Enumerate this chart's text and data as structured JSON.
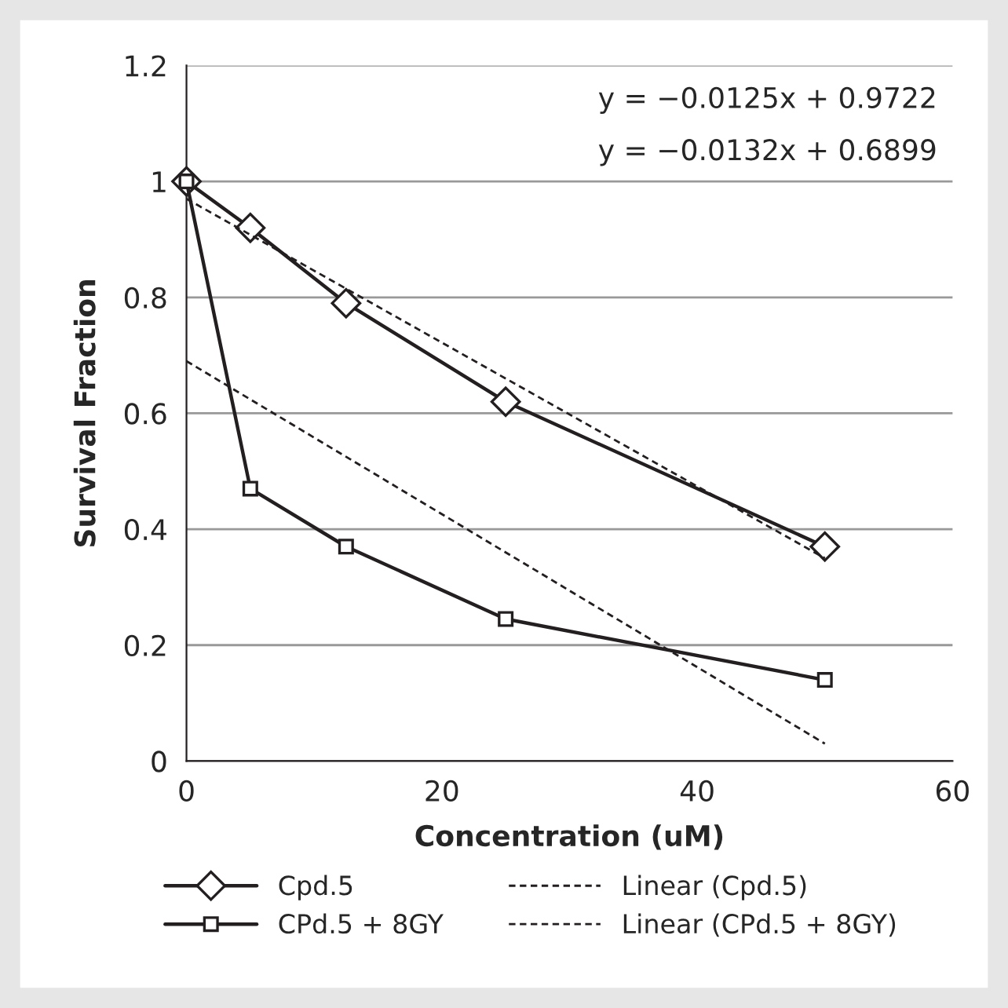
{
  "chart_data": {
    "type": "line",
    "xlabel": "Concentration (uM)",
    "ylabel": "Survival Fraction",
    "xlim": [
      0,
      60
    ],
    "xticks": [
      0,
      20,
      40,
      60
    ],
    "ylim": [
      0,
      1.2
    ],
    "yticks": [
      0,
      0.2,
      0.4,
      0.6,
      0.8,
      1,
      1.2
    ],
    "grid": "y",
    "legend": "bottom",
    "annotations": [
      "y = −0.0125x + 0.9722",
      "y = −0.0132x + 0.6899"
    ],
    "series": [
      {
        "name": "Cpd.5",
        "color": "#231f20",
        "x": [
          0,
          5,
          12.5,
          25,
          50
        ],
        "values": [
          1,
          0.92,
          0.79,
          0.62,
          0.37
        ],
        "marker": "diamond",
        "line_style": "solid"
      },
      {
        "name": "CPd.5 + 8GY",
        "color": "#231f20",
        "x": [
          0,
          5,
          12.5,
          25,
          50
        ],
        "values": [
          1,
          0.47,
          0.37,
          0.245,
          0.14
        ],
        "marker": "square",
        "line_style": "solid"
      },
      {
        "name": "Linear (Cpd.5)",
        "color": "#231f20",
        "x": [
          0,
          50
        ],
        "values": [
          0.97,
          0.35
        ],
        "marker": "none",
        "line_style": "dashed"
      },
      {
        "name": "Linear (CPd.5 + 8GY)",
        "color": "#231f20",
        "x": [
          0,
          50
        ],
        "values": [
          0.69,
          0.03
        ],
        "marker": "none",
        "line_style": "dashed"
      }
    ]
  }
}
